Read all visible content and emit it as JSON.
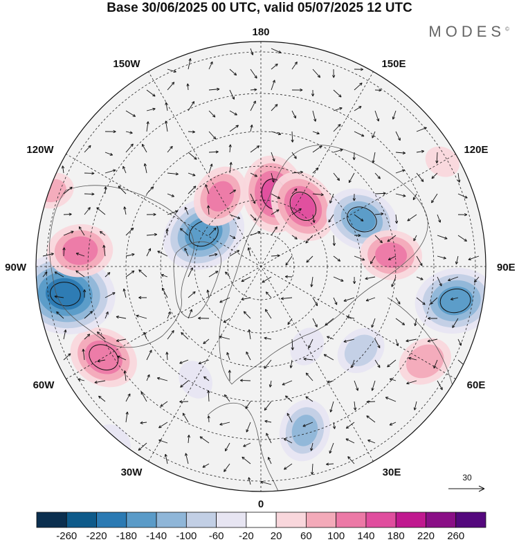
{
  "title": "Base 30/06/2025 00 UTC, valid 05/07/2025 12 UTC",
  "brand": "MODES",
  "brand_mark": "©",
  "longitude_labels": {
    "top": "180",
    "bottom": "0",
    "left": "90W",
    "right": "90E",
    "upper_left_1": "150W",
    "upper_left_2": "120W",
    "upper_right_1": "150E",
    "upper_right_2": "120E",
    "lower_left_1": "60W",
    "lower_left_2": "30W",
    "lower_right_1": "60E",
    "lower_right_2": "30E"
  },
  "reference_vector_label": "30",
  "colorbar": {
    "colors": [
      "#0b2f4f",
      "#0e5a8a",
      "#2b7ab3",
      "#5a9bc8",
      "#8fb6d8",
      "#c2cfe5",
      "#e7e5f2",
      "#ffffff",
      "#f9d7dc",
      "#f3aab9",
      "#ec79a6",
      "#e04e9e",
      "#c0198f",
      "#8a0f86",
      "#54087d"
    ],
    "ticks": [
      "-260",
      "-220",
      "-180",
      "-140",
      "-100",
      "-60",
      "-20",
      "20",
      "60",
      "100",
      "140",
      "180",
      "220",
      "260"
    ]
  },
  "anomalies": [
    {
      "lon": -120,
      "lat": 72,
      "value": -180
    },
    {
      "lon": -150,
      "lat": 68,
      "value": 120
    },
    {
      "lon": 170,
      "lat": 70,
      "value": 160
    },
    {
      "lon": 145,
      "lat": 70,
      "value": 150
    },
    {
      "lon": 115,
      "lat": 60,
      "value": -150
    },
    {
      "lon": 95,
      "lat": 55,
      "value": 120
    },
    {
      "lon": 80,
      "lat": 38,
      "value": -170
    },
    {
      "lon": 60,
      "lat": 40,
      "value": 100
    },
    {
      "lon": 50,
      "lat": 55,
      "value": -90
    },
    {
      "lon": 15,
      "lat": 45,
      "value": -120
    },
    {
      "lon": 30,
      "lat": 65,
      "value": -60
    },
    {
      "lon": -30,
      "lat": 55,
      "value": -60
    },
    {
      "lon": -60,
      "lat": 42,
      "value": 140
    },
    {
      "lon": -82,
      "lat": 38,
      "value": -220
    },
    {
      "lon": -95,
      "lat": 42,
      "value": 130
    },
    {
      "lon": -110,
      "lat": 32,
      "value": 70
    },
    {
      "lon": -40,
      "lat": 30,
      "value": -60
    },
    {
      "lon": 120,
      "lat": 35,
      "value": 50
    }
  ]
}
